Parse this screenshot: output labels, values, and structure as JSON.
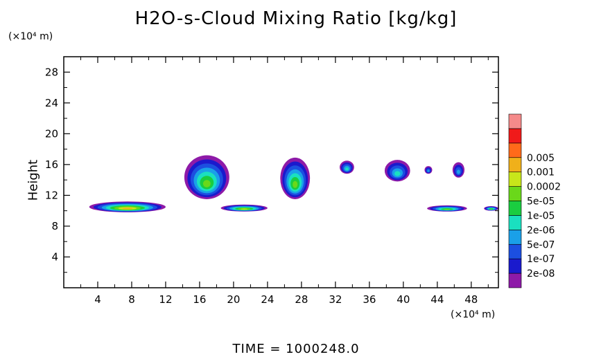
{
  "chart_data": {
    "type": "heatmap",
    "title": "H2O-s-Cloud Mixing Ratio [kg/kg]",
    "ylabel": "Height",
    "x_unit": "(×10⁴ m)",
    "y_unit": "(×10⁴ m)",
    "time_label": "TIME  =  1000248.0",
    "xlim": [
      0,
      51.2
    ],
    "ylim": [
      0,
      30
    ],
    "x_ticks": [
      4,
      8,
      12,
      16,
      20,
      24,
      28,
      32,
      36,
      40,
      44,
      48
    ],
    "y_ticks": [
      4,
      8,
      12,
      16,
      20,
      24,
      28
    ],
    "colorbar": {
      "colors": [
        "#8e1aa8",
        "#1a1acd",
        "#1c4fe0",
        "#1aa0e8",
        "#1ae0c0",
        "#1acd40",
        "#6ad81a",
        "#c8e61a",
        "#f0b01a",
        "#ff6a1a",
        "#f01a1a",
        "#f58a8a"
      ],
      "labels": [
        "2e-08",
        "1e-07",
        "5e-07",
        "2e-06",
        "1e-05",
        "5e-05",
        "0.0002",
        "0.001",
        "0.005"
      ]
    },
    "cloud_features": [
      {
        "x0": 14.2,
        "x1": 19.5,
        "y0": 11.5,
        "y1": 17.2,
        "peak": 6
      },
      {
        "x0": 25.5,
        "x1": 29.0,
        "y0": 11.5,
        "y1": 16.9,
        "peak": 6
      },
      {
        "x0": 32.5,
        "x1": 34.2,
        "y0": 14.8,
        "y1": 16.5,
        "peak": 4
      },
      {
        "x0": 37.8,
        "x1": 40.8,
        "y0": 13.8,
        "y1": 16.6,
        "peak": 4
      },
      {
        "x0": 42.5,
        "x1": 43.4,
        "y0": 14.8,
        "y1": 15.8,
        "peak": 3
      },
      {
        "x0": 45.8,
        "x1": 47.2,
        "y0": 14.3,
        "y1": 16.3,
        "peak": 3
      },
      {
        "x0": 3.0,
        "x1": 12.0,
        "y0": 9.8,
        "y1": 11.2,
        "peak": 8
      },
      {
        "x0": 18.5,
        "x1": 24.0,
        "y0": 9.9,
        "y1": 10.8,
        "peak": 7
      },
      {
        "x0": 42.8,
        "x1": 47.5,
        "y0": 9.9,
        "y1": 10.7,
        "peak": 6
      },
      {
        "x0": 49.5,
        "x1": 51.2,
        "y0": 10.0,
        "y1": 10.6,
        "peak": 6
      }
    ]
  }
}
